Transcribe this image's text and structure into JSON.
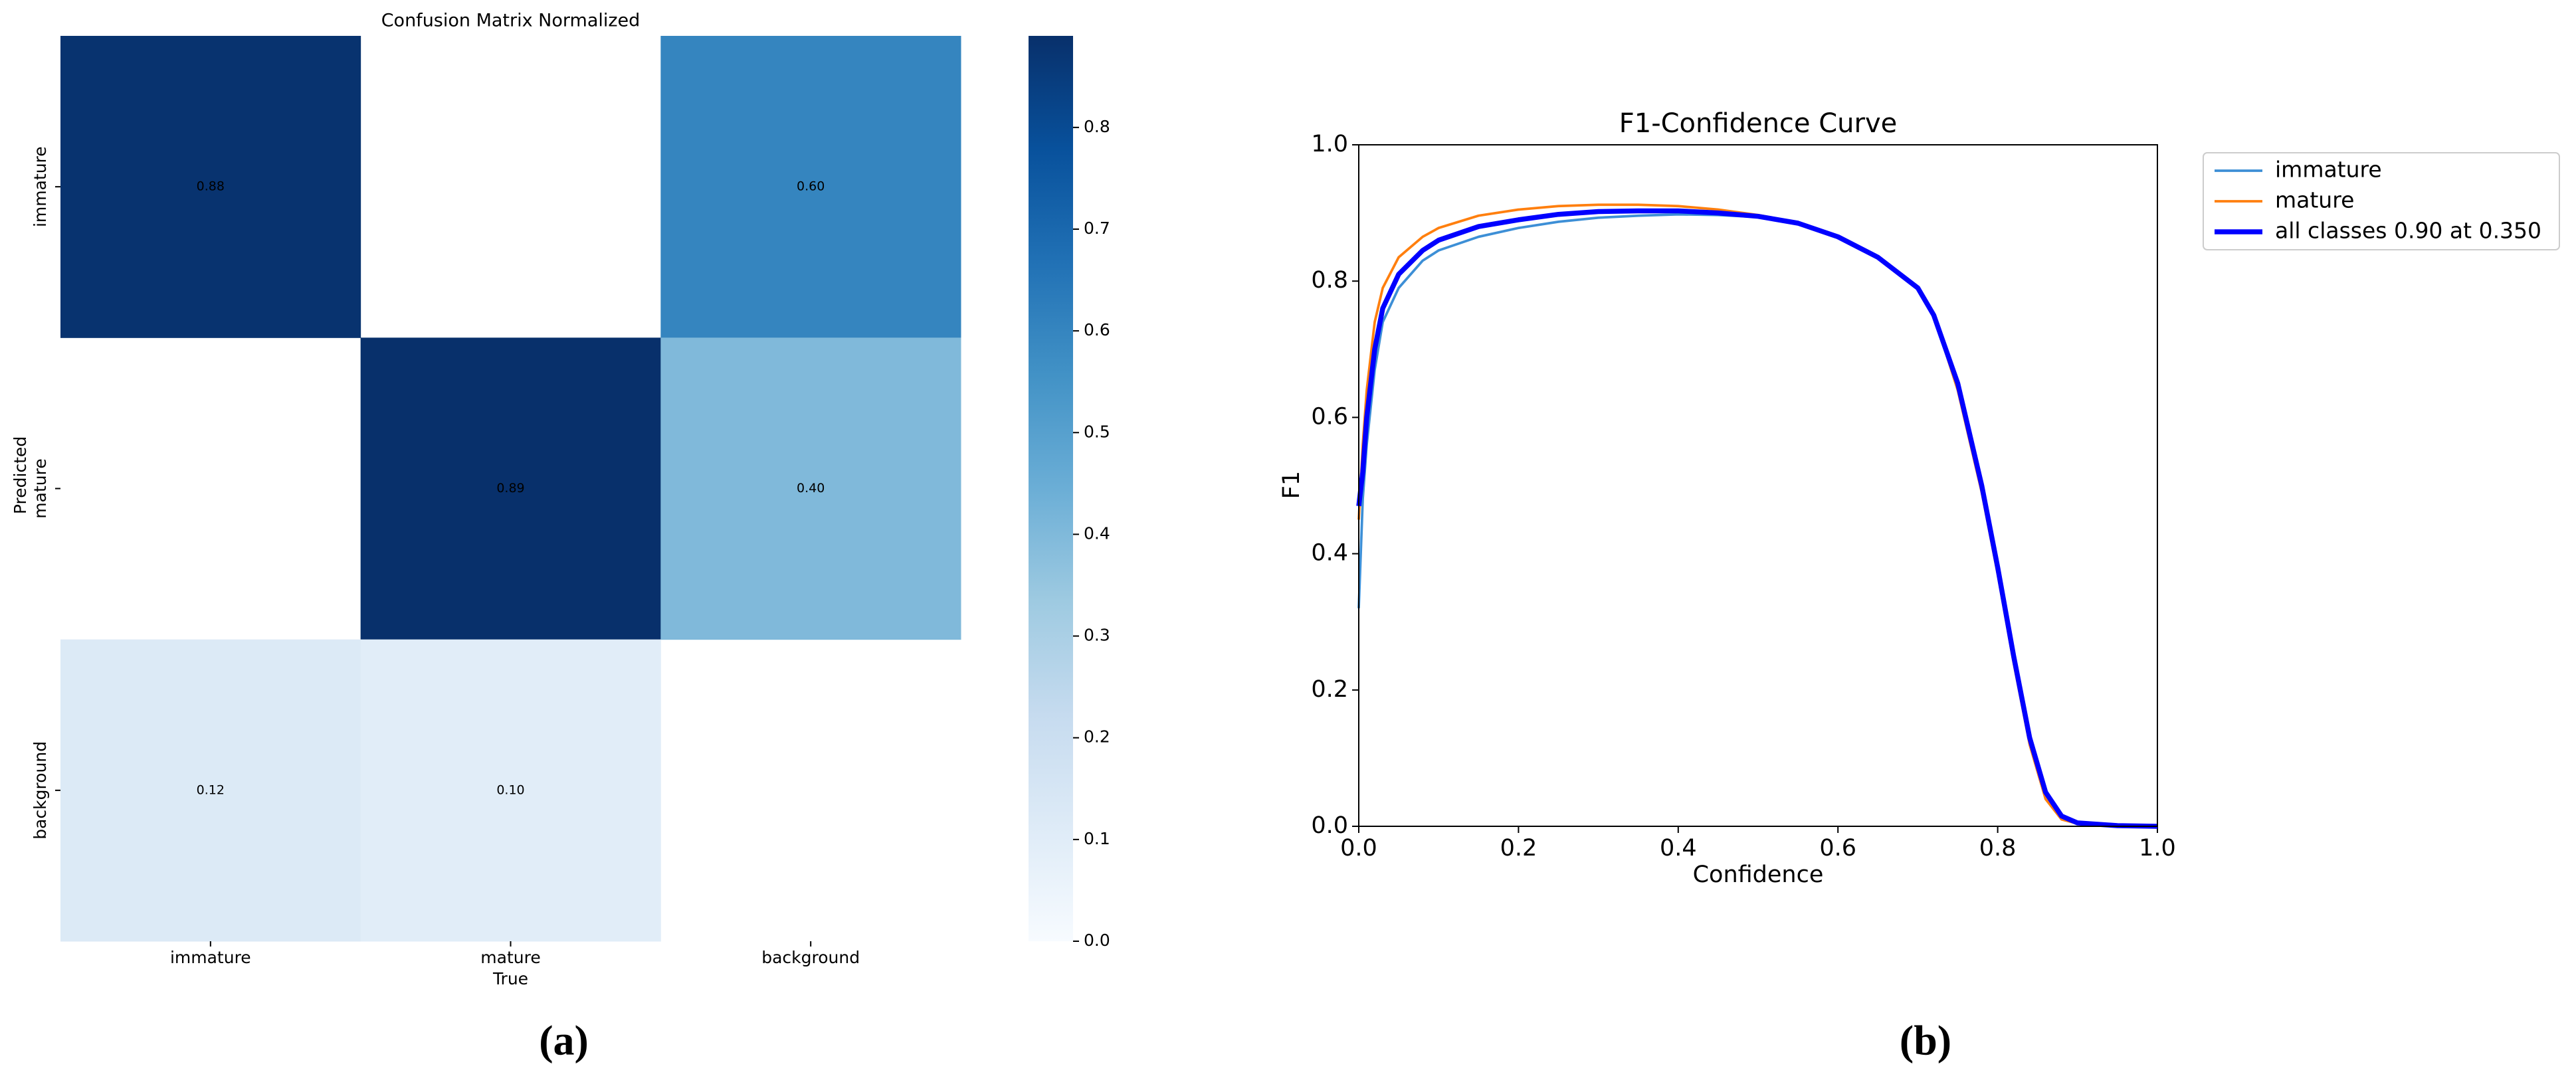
{
  "chart_data": [
    {
      "type": "heatmap",
      "title": "Confusion Matrix Normalized",
      "xlabel": "True",
      "ylabel": "Predicted",
      "x_categories": [
        "immature",
        "mature",
        "background"
      ],
      "y_categories": [
        "immature",
        "mature",
        "background"
      ],
      "values": [
        [
          0.88,
          null,
          0.6
        ],
        [
          null,
          0.89,
          0.4
        ],
        [
          0.12,
          0.1,
          null
        ]
      ],
      "value_labels": [
        [
          "0.88",
          null,
          "0.60"
        ],
        [
          null,
          "0.89",
          "0.40"
        ],
        [
          "0.12",
          "0.10",
          null
        ]
      ],
      "colormap": "Blues",
      "clim": [
        0,
        0.89
      ],
      "cticks": [
        {
          "value": 0,
          "label": "0.0"
        },
        {
          "value": 0.1,
          "label": "0.1"
        },
        {
          "value": 0.2,
          "label": "0.2"
        },
        {
          "value": 0.3,
          "label": "0.3"
        },
        {
          "value": 0.4,
          "label": "0.4"
        },
        {
          "value": 0.5,
          "label": "0.5"
        },
        {
          "value": 0.6,
          "label": "0.6"
        },
        {
          "value": 0.7,
          "label": "0.7"
        },
        {
          "value": 0.8,
          "label": "0.8"
        }
      ],
      "caption": "(a)"
    },
    {
      "type": "line",
      "title": "F1-Confidence Curve",
      "xlabel": "Confidence",
      "ylabel": "F1",
      "x": [
        0,
        0.005,
        0.01,
        0.02,
        0.03,
        0.05,
        0.08,
        0.1,
        0.15,
        0.2,
        0.25,
        0.3,
        0.35,
        0.4,
        0.45,
        0.5,
        0.55,
        0.6,
        0.65,
        0.7,
        0.72,
        0.75,
        0.78,
        0.8,
        0.82,
        0.84,
        0.86,
        0.88,
        0.9,
        0.95,
        1.0
      ],
      "series": [
        {
          "name": "immature",
          "color": "#3d8fd6",
          "linewidth": 1.5,
          "values": [
            0.32,
            0.48,
            0.56,
            0.67,
            0.74,
            0.79,
            0.83,
            0.845,
            0.865,
            0.878,
            0.887,
            0.893,
            0.896,
            0.898,
            0.897,
            0.894,
            0.885,
            0.866,
            0.836,
            0.79,
            0.75,
            0.65,
            0.5,
            0.38,
            0.25,
            0.13,
            0.05,
            0.015,
            0.005,
            0.001,
            0.0
          ]
        },
        {
          "name": "mature",
          "color": "#ff7f0e",
          "linewidth": 1.5,
          "values": [
            0.45,
            0.56,
            0.64,
            0.74,
            0.79,
            0.835,
            0.865,
            0.878,
            0.896,
            0.905,
            0.91,
            0.912,
            0.912,
            0.91,
            0.905,
            0.897,
            0.886,
            0.866,
            0.835,
            0.79,
            0.75,
            0.64,
            0.49,
            0.37,
            0.24,
            0.12,
            0.04,
            0.01,
            0.004,
            0.001,
            0.0
          ]
        },
        {
          "name": "all classes 0.90 at 0.350",
          "color": "#0000ff",
          "linewidth": 3,
          "values": [
            0.47,
            0.52,
            0.6,
            0.7,
            0.76,
            0.81,
            0.845,
            0.86,
            0.88,
            0.89,
            0.898,
            0.902,
            0.903,
            0.903,
            0.9,
            0.895,
            0.885,
            0.865,
            0.835,
            0.79,
            0.75,
            0.65,
            0.5,
            0.38,
            0.25,
            0.13,
            0.05,
            0.015,
            0.005,
            0.001,
            0.0
          ]
        }
      ],
      "xlim": [
        0,
        1
      ],
      "ylim": [
        0,
        1
      ],
      "xticks": [
        {
          "value": 0,
          "label": "0.0"
        },
        {
          "value": 0.2,
          "label": "0.2"
        },
        {
          "value": 0.4,
          "label": "0.4"
        },
        {
          "value": 0.6,
          "label": "0.6"
        },
        {
          "value": 0.8,
          "label": "0.8"
        },
        {
          "value": 1,
          "label": "1.0"
        }
      ],
      "yticks": [
        {
          "value": 0,
          "label": "0.0"
        },
        {
          "value": 0.2,
          "label": "0.2"
        },
        {
          "value": 0.4,
          "label": "0.4"
        },
        {
          "value": 0.6,
          "label": "0.6"
        },
        {
          "value": 0.8,
          "label": "0.8"
        },
        {
          "value": 1,
          "label": "1.0"
        }
      ],
      "legend": true,
      "caption": "(b)"
    }
  ]
}
